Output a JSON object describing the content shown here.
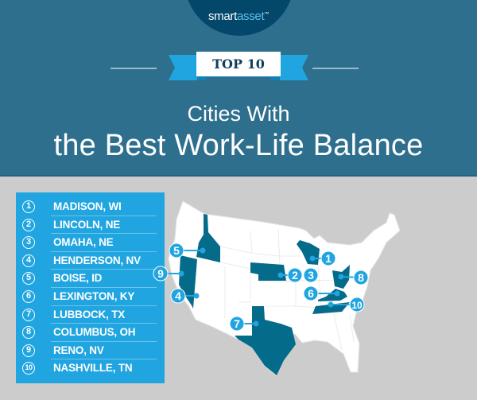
{
  "brand": {
    "logo_part1": "smart",
    "logo_part2": "asset",
    "tm": "™"
  },
  "badge": "TOP 10",
  "title_line1": "Cities With",
  "title_line2": "the Best Work-Life Balance",
  "colors": {
    "header": "#2e6f8e",
    "logo_circle": "#03476b",
    "accent": "#20a5e0",
    "highlight_state": "#046b8a",
    "map_land": "#ffffff",
    "background": "#cccccc"
  },
  "ranking": [
    {
      "rank": "1",
      "city": "MADISON, WI"
    },
    {
      "rank": "2",
      "city": "LINCOLN, NE"
    },
    {
      "rank": "3",
      "city": "OMAHA, NE"
    },
    {
      "rank": "4",
      "city": "HENDERSON, NV"
    },
    {
      "rank": "5",
      "city": "BOISE, ID"
    },
    {
      "rank": "6",
      "city": "LEXINGTON, KY"
    },
    {
      "rank": "7",
      "city": "LUBBOCK, TX"
    },
    {
      "rank": "8",
      "city": "COLUMBUS, OH"
    },
    {
      "rank": "9",
      "city": "RENO, NV"
    },
    {
      "rank": "10",
      "city": "NASHVILLE, TN"
    }
  ],
  "highlighted_states": [
    "Idaho",
    "Nevada",
    "Nebraska",
    "Texas",
    "Wisconsin",
    "Ohio",
    "Kentucky",
    "Tennessee"
  ]
}
